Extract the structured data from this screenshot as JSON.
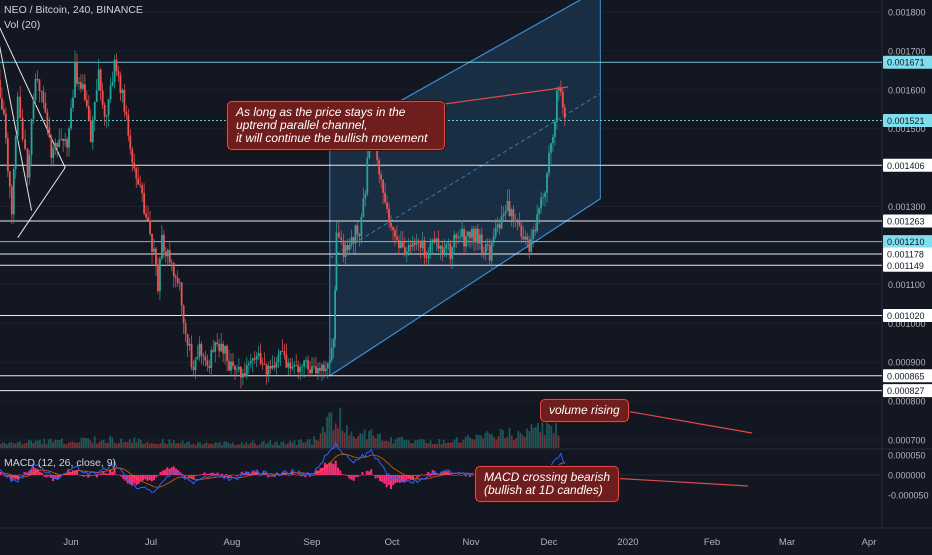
{
  "header": {
    "symbol_line": "NEO / Bitcoin, 240, BINANCE",
    "volume_label": "Vol (20)",
    "macd_label": "MACD (12, 26, close, 9)"
  },
  "annotations": {
    "channel_note": [
      "As long as the price stays in the",
      "uptrend parallel channel,",
      "it will continue the bullish movement"
    ],
    "volume_note": "volume rising",
    "macd_note": [
      "MACD crossing bearish",
      "(bullish at 1D candles)"
    ]
  },
  "colors": {
    "background": "#131722",
    "candle_up": "#26a69a",
    "candle_down": "#ef5350",
    "channel_fill": "#1f3f5f",
    "channel_line": "#3a8fd6",
    "level_line": "#ffffff",
    "label_highlight": "#7fdfee",
    "note_bg": "#6f1d1d",
    "note_border": "#e04a4a",
    "macd_line": "#2962ff",
    "signal_line": "#ff6d00",
    "histogram": "#ff2d78"
  },
  "chart_data": {
    "type": "line",
    "title": "NEO / Bitcoin, 240, BINANCE",
    "x_labels": [
      "Jun",
      "Jul",
      "Aug",
      "Sep",
      "Oct",
      "Nov",
      "Dec",
      "2020",
      "Feb",
      "Mar",
      "Apr"
    ],
    "price_axis": {
      "ylim": [
        0.00078,
        0.00185
      ],
      "ticks": [
        0.0018,
        0.0017,
        0.0016,
        0.0015,
        0.0013,
        0.0011,
        0.001,
        0.0009,
        0.0008,
        0.0007
      ],
      "tick_labels": [
        "0.001800",
        "0.001700",
        "0.001600",
        "0.001500",
        "0.001300",
        "0.001100",
        "0.001000",
        "0.000900",
        "0.000800",
        "0.000700"
      ]
    },
    "horizontal_levels": [
      {
        "value": 0.001671,
        "label": "0.001671",
        "highlight": true
      },
      {
        "value": 0.001521,
        "label": "0.001521",
        "highlight": true,
        "current": true
      },
      {
        "value": 0.001406,
        "label": "0.001406",
        "highlight": false
      },
      {
        "value": 0.001263,
        "label": "0.001263",
        "highlight": false
      },
      {
        "value": 0.00121,
        "label": "0.001210",
        "highlight": true
      },
      {
        "value": 0.001178,
        "label": "0.001178",
        "highlight": false
      },
      {
        "value": 0.001149,
        "label": "0.001149",
        "highlight": false
      },
      {
        "value": 0.00102,
        "label": "0.001020",
        "highlight": false
      },
      {
        "value": 0.000865,
        "label": "0.000865",
        "highlight": false
      },
      {
        "value": 0.000827,
        "label": "0.000827",
        "highlight": false
      }
    ],
    "price_series": [
      [
        0.0,
        0.00168
      ],
      [
        0.2,
        0.00152
      ],
      [
        0.4,
        0.0013
      ],
      [
        0.55,
        0.00158
      ],
      [
        0.8,
        0.00138
      ],
      [
        1.0,
        0.00163
      ],
      [
        1.2,
        0.00156
      ],
      [
        1.4,
        0.00144
      ],
      [
        1.6,
        0.00148
      ],
      [
        1.8,
        0.00145
      ],
      [
        2.0,
        0.00165
      ],
      [
        2.2,
        0.0016
      ],
      [
        2.4,
        0.00148
      ],
      [
        2.6,
        0.00163
      ],
      [
        2.8,
        0.00152
      ],
      [
        3.0,
        0.00168
      ],
      [
        3.2,
        0.00158
      ],
      [
        3.4,
        0.00145
      ],
      [
        3.6,
        0.00135
      ],
      [
        3.8,
        0.00128
      ],
      [
        4.0,
        0.00118
      ],
      [
        4.1,
        0.00108
      ],
      [
        4.2,
        0.00122
      ],
      [
        4.4,
        0.00116
      ],
      [
        4.6,
        0.00112
      ],
      [
        4.8,
        0.00098
      ],
      [
        5.0,
        0.00088
      ],
      [
        5.2,
        0.00094
      ],
      [
        5.4,
        0.0009
      ],
      [
        5.6,
        0.00095
      ],
      [
        5.8,
        0.00092
      ],
      [
        6.0,
        0.00088
      ],
      [
        6.2,
        0.00087
      ],
      [
        6.4,
        0.0009
      ],
      [
        6.6,
        0.00093
      ],
      [
        6.8,
        0.00089
      ],
      [
        7.0,
        0.00087
      ],
      [
        7.2,
        0.00091
      ],
      [
        7.4,
        0.0009
      ],
      [
        7.6,
        0.00088
      ],
      [
        7.8,
        0.0009
      ],
      [
        8.0,
        0.00087
      ],
      [
        8.2,
        0.00088
      ],
      [
        8.4,
        0.00091
      ],
      [
        8.55,
        0.00095
      ],
      [
        8.62,
        0.00122
      ],
      [
        8.8,
        0.00118
      ],
      [
        9.0,
        0.00122
      ],
      [
        9.2,
        0.00124
      ],
      [
        9.35,
        0.00135
      ],
      [
        9.5,
        0.00151
      ],
      [
        9.7,
        0.0014
      ],
      [
        9.9,
        0.00128
      ],
      [
        10.1,
        0.00122
      ],
      [
        10.3,
        0.0012
      ],
      [
        10.5,
        0.00118
      ],
      [
        10.7,
        0.00121
      ],
      [
        10.9,
        0.00118
      ],
      [
        11.1,
        0.00122
      ],
      [
        11.3,
        0.00119
      ],
      [
        11.5,
        0.00118
      ],
      [
        11.7,
        0.00124
      ],
      [
        11.9,
        0.00121
      ],
      [
        12.1,
        0.00123
      ],
      [
        12.3,
        0.0012
      ],
      [
        12.5,
        0.00118
      ],
      [
        12.7,
        0.00125
      ],
      [
        12.9,
        0.0013
      ],
      [
        13.1,
        0.00127
      ],
      [
        13.3,
        0.00123
      ],
      [
        13.5,
        0.00119
      ],
      [
        13.7,
        0.00128
      ],
      [
        13.9,
        0.00135
      ],
      [
        14.1,
        0.0015
      ],
      [
        14.25,
        0.00162
      ],
      [
        14.35,
        0.00155
      ],
      [
        14.45,
        0.00152
      ]
    ],
    "channel": {
      "lower": [
        [
          8.45,
          0.000865
        ],
        [
          15.3,
          0.00132
        ]
      ],
      "upper": [
        [
          8.45,
          0.00147
        ],
        [
          15.3,
          0.00186
        ]
      ]
    },
    "volume_series": [
      [
        0.0,
        0.12
      ],
      [
        1.0,
        0.18
      ],
      [
        2.0,
        0.22
      ],
      [
        3.0,
        0.25
      ],
      [
        4.0,
        0.2
      ],
      [
        5.0,
        0.15
      ],
      [
        6.0,
        0.14
      ],
      [
        7.0,
        0.16
      ],
      [
        8.0,
        0.18
      ],
      [
        8.6,
        1.0
      ],
      [
        9.0,
        0.35
      ],
      [
        9.5,
        0.45
      ],
      [
        10.0,
        0.25
      ],
      [
        11.0,
        0.2
      ],
      [
        12.0,
        0.28
      ],
      [
        12.5,
        0.35
      ],
      [
        13.0,
        0.4
      ],
      [
        14.0,
        0.55
      ],
      [
        14.3,
        0.75
      ]
    ],
    "macd_axis": {
      "ylim": [
        -6e-05,
        7e-05
      ],
      "ticks": [
        5e-05,
        0.0,
        -5e-05
      ],
      "tick_labels": [
        "0.000050",
        "0.000000",
        "-0.000050"
      ]
    },
    "macd_series": [
      [
        0.0,
        2e-05
      ],
      [
        0.5,
        -2e-05
      ],
      [
        1.0,
        3e-05
      ],
      [
        1.5,
        -1e-05
      ],
      [
        2.0,
        2e-05
      ],
      [
        2.5,
        0.0
      ],
      [
        3.0,
        3e-05
      ],
      [
        3.5,
        -3e-05
      ],
      [
        4.0,
        -4e-05
      ],
      [
        4.5,
        1e-05
      ],
      [
        5.0,
        -2e-05
      ],
      [
        5.5,
        0.0
      ],
      [
        6.0,
        -1e-05
      ],
      [
        6.5,
        1e-05
      ],
      [
        7.0,
        0.0
      ],
      [
        7.5,
        1e-05
      ],
      [
        8.0,
        0.0
      ],
      [
        8.6,
        8e-05
      ],
      [
        9.0,
        3e-05
      ],
      [
        9.5,
        6e-05
      ],
      [
        10.0,
        -1e-05
      ],
      [
        10.5,
        -2e-05
      ],
      [
        11.0,
        0.0
      ],
      [
        11.5,
        1e-05
      ],
      [
        12.0,
        0.0
      ],
      [
        12.5,
        2e-05
      ],
      [
        13.0,
        1e-05
      ],
      [
        13.5,
        0.0
      ],
      [
        14.0,
        2e-05
      ],
      [
        14.3,
        5e-05
      ],
      [
        14.45,
        2e-05
      ]
    ]
  }
}
